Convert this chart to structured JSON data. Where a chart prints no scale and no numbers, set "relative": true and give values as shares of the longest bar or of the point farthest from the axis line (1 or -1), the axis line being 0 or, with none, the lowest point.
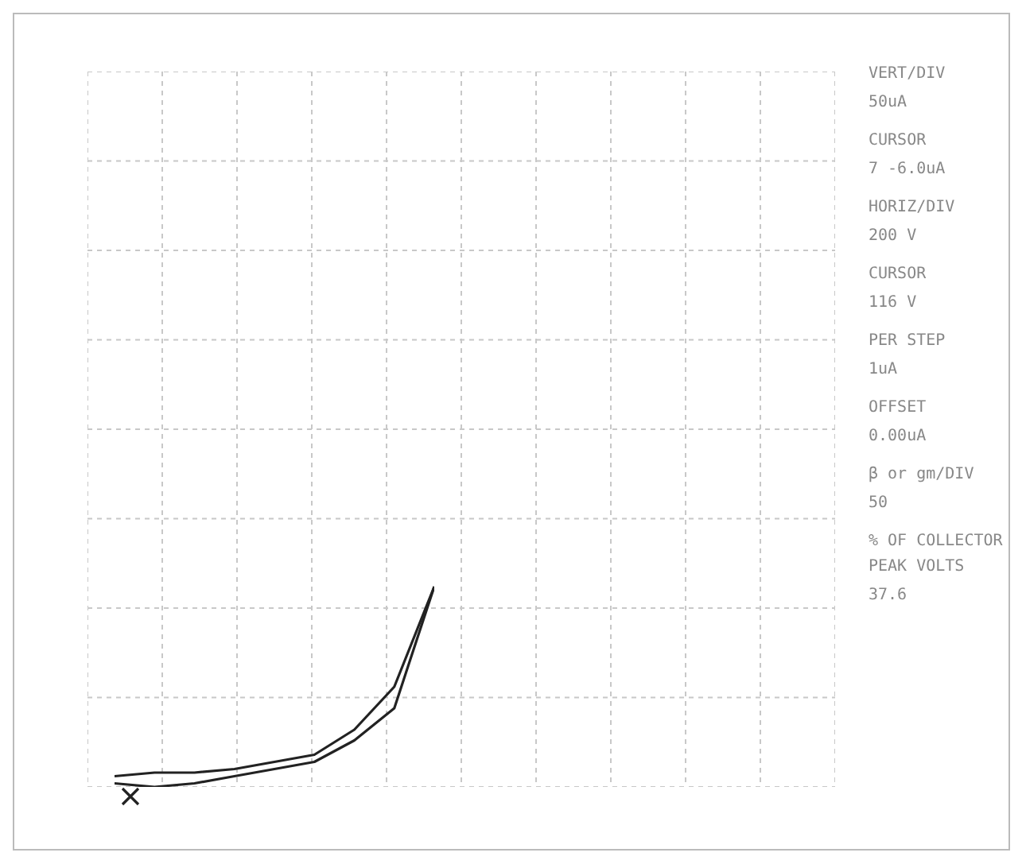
{
  "chart_data": {
    "type": "line",
    "relative": true,
    "grid": true,
    "categories": [
      null,
      null,
      null,
      null,
      null,
      null,
      null,
      null,
      null
    ],
    "series": [
      {
        "color": "#222222",
        "values": [
          -0.99,
          -1,
          -0.99,
          -0.97,
          -0.95,
          -0.93,
          -0.87,
          -0.78,
          -0.44
        ]
      },
      {
        "color": "#222222",
        "values": [
          -0.97,
          -0.96,
          -0.96,
          -0.95,
          -0.93,
          -0.91,
          -0.84,
          -0.72,
          -0.44
        ]
      }
    ],
    "annotations": [
      "VERT/DIV",
      "50uA",
      "CURSOR",
      "7  -6.0uA",
      "HORIZ/DIV",
      "200 V",
      "CURSOR",
      "116 V",
      "PER STEP",
      "1uA",
      "OFFSET",
      "0.00uA",
      "β or gm/DIV",
      "50",
      "% OF COLLECTOR PEAK VOLTS",
      "37.6"
    ]
  }
}
